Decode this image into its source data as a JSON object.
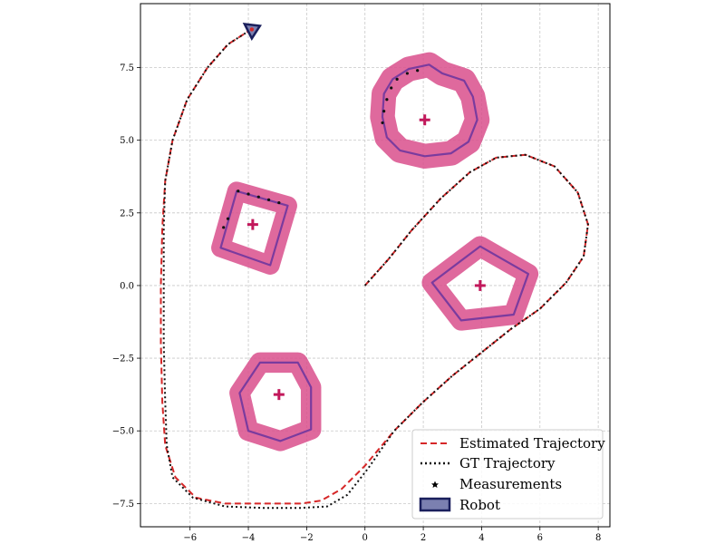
{
  "chart_data": {
    "type": "line",
    "xlim": [
      -7.7,
      8.4
    ],
    "ylim": [
      -8.3,
      9.7
    ],
    "x_ticks": [
      -6,
      -4,
      -2,
      0,
      2,
      4,
      6,
      8
    ],
    "y_ticks": [
      -7.5,
      -5.0,
      -2.5,
      0.0,
      2.5,
      5.0,
      7.5
    ],
    "x_tick_labels": [
      "−6",
      "−4",
      "−2",
      "0",
      "2",
      "4",
      "6",
      "8"
    ],
    "y_tick_labels": [
      "−7.5",
      "−5.0",
      "−2.5",
      "0.0",
      "2.5",
      "5.0",
      "7.5"
    ],
    "grid": true,
    "legend_position": "bottom-right",
    "legend": [
      {
        "label": "Estimated Trajectory",
        "style": "dashed",
        "color": "#d62728"
      },
      {
        "label": "GT Trajectory",
        "style": "dotted",
        "color": "#000000"
      },
      {
        "label": "Measurements",
        "style": "star",
        "color": "#000000"
      },
      {
        "label": "Robot",
        "style": "patch",
        "color": "#1a1f5c"
      }
    ],
    "colors": {
      "estimated": "#d62728",
      "gt": "#111111",
      "uncertainty": "#d94f8c",
      "object_outline": "#7a3b9e",
      "center": "#c2185b",
      "robot_fill": "#7b80b0",
      "robot_edge": "#1a1f5c",
      "grid": "#c8c8c8"
    },
    "trajectory": {
      "estimated": [
        [
          0,
          0
        ],
        [
          0.8,
          0.9
        ],
        [
          1.6,
          1.9
        ],
        [
          2.6,
          3.0
        ],
        [
          3.6,
          3.9
        ],
        [
          4.5,
          4.4
        ],
        [
          5.5,
          4.5
        ],
        [
          6.5,
          4.1
        ],
        [
          7.3,
          3.2
        ],
        [
          7.65,
          2.1
        ],
        [
          7.5,
          1.0
        ],
        [
          6.9,
          0.1
        ],
        [
          6.0,
          -0.8
        ],
        [
          5.0,
          -1.5
        ],
        [
          4.0,
          -2.3
        ],
        [
          3.0,
          -3.1
        ],
        [
          2.0,
          -4.0
        ],
        [
          1.0,
          -5.0
        ],
        [
          0,
          -6.2
        ],
        [
          -0.8,
          -7.0
        ],
        [
          -1.5,
          -7.4
        ],
        [
          -2.2,
          -7.5
        ],
        [
          -3.5,
          -7.5
        ],
        [
          -4.8,
          -7.5
        ],
        [
          -5.8,
          -7.3
        ],
        [
          -6.5,
          -6.6
        ],
        [
          -6.85,
          -5.5
        ],
        [
          -6.95,
          -4.0
        ],
        [
          -7.0,
          -2.0
        ],
        [
          -7.0,
          0.0
        ],
        [
          -6.95,
          2.0
        ],
        [
          -6.85,
          3.6
        ],
        [
          -6.6,
          5.0
        ],
        [
          -6.1,
          6.4
        ],
        [
          -5.4,
          7.5
        ],
        [
          -4.7,
          8.3
        ],
        [
          -4.0,
          8.75
        ]
      ],
      "gt": [
        [
          0,
          0
        ],
        [
          0.8,
          0.9
        ],
        [
          1.6,
          1.9
        ],
        [
          2.6,
          3.0
        ],
        [
          3.6,
          3.9
        ],
        [
          4.5,
          4.4
        ],
        [
          5.5,
          4.5
        ],
        [
          6.5,
          4.1
        ],
        [
          7.3,
          3.2
        ],
        [
          7.65,
          2.1
        ],
        [
          7.5,
          1.0
        ],
        [
          6.9,
          0.1
        ],
        [
          6.0,
          -0.8
        ],
        [
          5.0,
          -1.5
        ],
        [
          4.0,
          -2.3
        ],
        [
          3.0,
          -3.1
        ],
        [
          2.0,
          -4.0
        ],
        [
          1.0,
          -5.0
        ],
        [
          0.1,
          -6.3
        ],
        [
          -0.6,
          -7.2
        ],
        [
          -1.3,
          -7.6
        ],
        [
          -2.2,
          -7.65
        ],
        [
          -3.5,
          -7.65
        ],
        [
          -4.8,
          -7.6
        ],
        [
          -5.9,
          -7.3
        ],
        [
          -6.6,
          -6.6
        ],
        [
          -6.8,
          -5.5
        ],
        [
          -6.85,
          -4.0
        ],
        [
          -6.9,
          -2.0
        ],
        [
          -6.9,
          0.0
        ],
        [
          -6.9,
          2.0
        ],
        [
          -6.85,
          3.6
        ],
        [
          -6.6,
          5.0
        ],
        [
          -6.1,
          6.4
        ],
        [
          -5.4,
          7.5
        ],
        [
          -4.7,
          8.3
        ],
        [
          -4.0,
          8.75
        ]
      ]
    },
    "robot": {
      "x": -3.85,
      "y": 8.75
    },
    "objects": [
      {
        "center": [
          2.05,
          5.7
        ],
        "band_width": 0.85,
        "outline": [
          [
            0.6,
            5.8
          ],
          [
            0.65,
            6.6
          ],
          [
            0.95,
            7.1
          ],
          [
            1.5,
            7.45
          ],
          [
            2.2,
            7.6
          ],
          [
            2.65,
            7.3
          ],
          [
            3.4,
            7.05
          ],
          [
            3.7,
            6.5
          ],
          [
            3.85,
            5.7
          ],
          [
            3.55,
            4.95
          ],
          [
            2.95,
            4.55
          ],
          [
            2.05,
            4.45
          ],
          [
            1.2,
            4.65
          ],
          [
            0.75,
            5.1
          ]
        ],
        "measurements": [
          [
            0.6,
            5.6
          ],
          [
            0.65,
            6.0
          ],
          [
            0.75,
            6.4
          ],
          [
            0.9,
            6.8
          ],
          [
            1.1,
            7.1
          ],
          [
            1.45,
            7.3
          ],
          [
            1.8,
            7.4
          ]
        ]
      },
      {
        "center": [
          -3.85,
          2.1
        ],
        "band_width": 0.65,
        "outline": [
          [
            -4.4,
            3.25
          ],
          [
            -2.65,
            2.75
          ],
          [
            -3.25,
            0.7
          ],
          [
            -4.95,
            1.3
          ]
        ],
        "measurements": [
          [
            -4.35,
            3.25
          ],
          [
            -4.0,
            3.15
          ],
          [
            -3.65,
            3.05
          ],
          [
            -3.3,
            2.95
          ],
          [
            -2.95,
            2.85
          ],
          [
            -4.7,
            2.3
          ],
          [
            -4.85,
            2.0
          ]
        ]
      },
      {
        "center": [
          3.95,
          0.0
        ],
        "band_width": 0.7,
        "outline": [
          [
            3.95,
            1.35
          ],
          [
            5.6,
            0.4
          ],
          [
            5.1,
            -1.0
          ],
          [
            3.3,
            -1.2
          ],
          [
            2.3,
            0.1
          ]
        ],
        "measurements": []
      },
      {
        "center": [
          -2.95,
          -3.75
        ],
        "band_width": 0.7,
        "outline": [
          [
            -3.6,
            -2.65
          ],
          [
            -2.3,
            -2.65
          ],
          [
            -1.85,
            -3.5
          ],
          [
            -1.85,
            -4.95
          ],
          [
            -2.9,
            -5.35
          ],
          [
            -4.0,
            -5.0
          ],
          [
            -4.3,
            -3.7
          ]
        ],
        "measurements": []
      }
    ]
  }
}
